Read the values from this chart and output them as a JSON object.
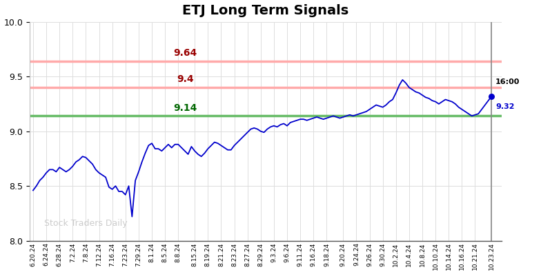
{
  "title": "ETJ Long Term Signals",
  "title_fontsize": 14,
  "title_fontweight": "bold",
  "ylim": [
    8.0,
    10.0
  ],
  "yticks": [
    8.0,
    8.5,
    9.0,
    9.5,
    10.0
  ],
  "hline_red1": 9.64,
  "hline_red2": 9.4,
  "hline_green": 9.14,
  "hline_red1_color": "#ffaaaa",
  "hline_red2_color": "#ffaaaa",
  "hline_green_color": "#66bb66",
  "label_red1": "9.64",
  "label_red2": "9.4",
  "label_green": "9.14",
  "label_red1_color": "#990000",
  "label_red2_color": "#990000",
  "label_green_color": "#006600",
  "last_price": "9.32",
  "last_time": "16:00",
  "last_price_color": "#0000cc",
  "line_color": "#0000cc",
  "watermark": "Stock Traders Daily",
  "watermark_color": "#cccccc",
  "background_color": "#ffffff",
  "grid_color": "#dddddd",
  "xtick_labels": [
    "6.20.24",
    "6.24.24",
    "6.28.24",
    "7.2.24",
    "7.8.24",
    "7.12.24",
    "7.16.24",
    "7.23.24",
    "7.29.24",
    "8.1.24",
    "8.5.24",
    "8.8.24",
    "8.15.24",
    "8.19.24",
    "8.21.24",
    "8.23.24",
    "8.27.24",
    "8.29.24",
    "9.3.24",
    "9.6.24",
    "9.11.24",
    "9.16.24",
    "9.18.24",
    "9.20.24",
    "9.24.24",
    "9.26.24",
    "9.30.24",
    "10.2.24",
    "10.4.24",
    "10.8.24",
    "10.10.24",
    "10.14.24",
    "10.16.24",
    "10.21.24",
    "10.23.24"
  ],
  "price_data": [
    8.46,
    8.5,
    8.55,
    8.58,
    8.62,
    8.65,
    8.65,
    8.63,
    8.67,
    8.65,
    8.63,
    8.65,
    8.68,
    8.72,
    8.74,
    8.77,
    8.76,
    8.73,
    8.7,
    8.65,
    8.62,
    8.6,
    8.58,
    8.49,
    8.47,
    8.5,
    8.45,
    8.45,
    8.42,
    8.5,
    8.22,
    8.55,
    8.63,
    8.72,
    8.8,
    8.87,
    8.89,
    8.84,
    8.84,
    8.82,
    8.85,
    8.88,
    8.85,
    8.88,
    8.88,
    8.85,
    8.82,
    8.79,
    8.86,
    8.82,
    8.79,
    8.77,
    8.8,
    8.84,
    8.87,
    8.9,
    8.89,
    8.87,
    8.85,
    8.83,
    8.83,
    8.87,
    8.9,
    8.93,
    8.96,
    8.99,
    9.02,
    9.03,
    9.02,
    9.0,
    8.99,
    9.02,
    9.04,
    9.05,
    9.04,
    9.06,
    9.07,
    9.05,
    9.08,
    9.09,
    9.1,
    9.11,
    9.11,
    9.1,
    9.11,
    9.12,
    9.13,
    9.12,
    9.11,
    9.12,
    9.13,
    9.14,
    9.13,
    9.12,
    9.13,
    9.14,
    9.15,
    9.14,
    9.15,
    9.16,
    9.17,
    9.18,
    9.2,
    9.22,
    9.24,
    9.23,
    9.22,
    9.24,
    9.27,
    9.29,
    9.35,
    9.42,
    9.47,
    9.44,
    9.4,
    9.38,
    9.36,
    9.35,
    9.33,
    9.31,
    9.3,
    9.28,
    9.27,
    9.25,
    9.27,
    9.29,
    9.28,
    9.27,
    9.25,
    9.22,
    9.2,
    9.18,
    9.16,
    9.14,
    9.15,
    9.16,
    9.2,
    9.24,
    9.28,
    9.32
  ]
}
